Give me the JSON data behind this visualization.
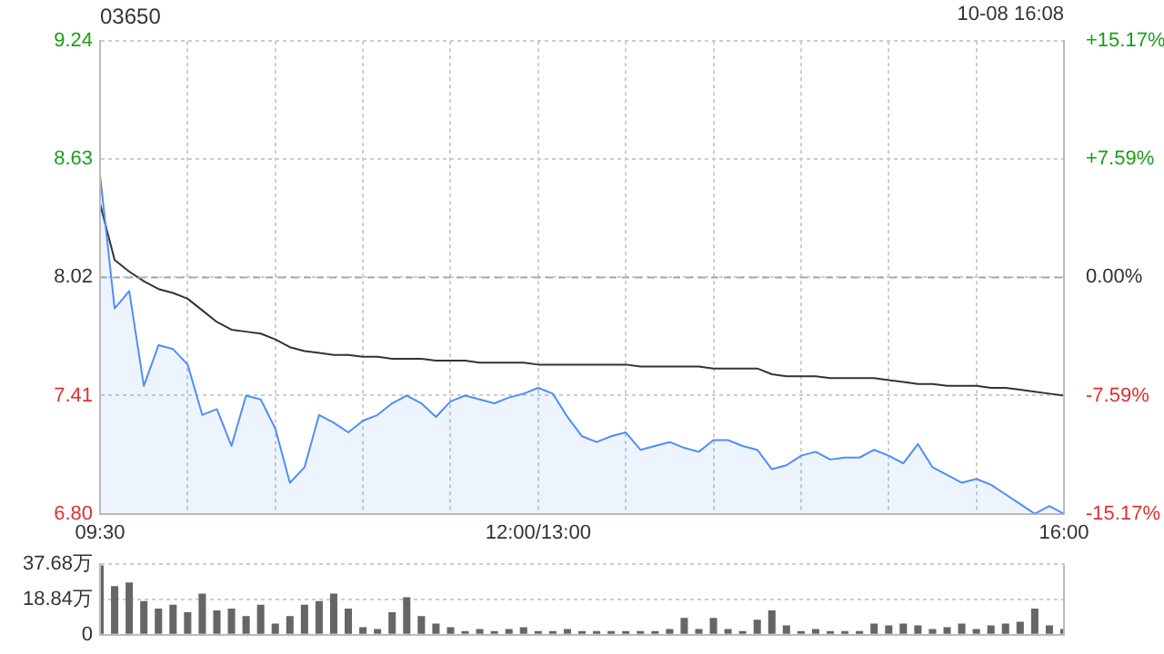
{
  "chart_data": [
    {
      "type": "line",
      "title": "03650",
      "annotations": [
        "10-08 16:08"
      ],
      "categories": [
        "09:30",
        null,
        null,
        null,
        null,
        null,
        null,
        null,
        null,
        null,
        null,
        null,
        null,
        null,
        null,
        null,
        null,
        null,
        null,
        null,
        null,
        null,
        null,
        null,
        null,
        null,
        null,
        null,
        null,
        null,
        "12:00/13:00",
        null,
        null,
        null,
        null,
        null,
        null,
        null,
        null,
        null,
        null,
        null,
        null,
        null,
        null,
        null,
        null,
        null,
        null,
        null,
        null,
        null,
        null,
        null,
        null,
        null,
        null,
        null,
        null,
        null,
        null,
        null,
        null,
        null,
        null,
        null,
        "16:00"
      ],
      "series": [
        {
          "type": "area",
          "color": "#4f8ef7",
          "values": [
            8.55,
            7.86,
            7.95,
            7.46,
            7.67,
            7.65,
            7.57,
            7.31,
            7.34,
            7.15,
            7.41,
            7.39,
            7.24,
            6.96,
            7.04,
            7.31,
            7.27,
            7.22,
            7.28,
            7.31,
            7.37,
            7.41,
            7.37,
            7.3,
            7.38,
            7.41,
            7.39,
            7.37,
            7.4,
            7.42,
            7.45,
            7.42,
            7.3,
            7.2,
            7.17,
            7.2,
            7.22,
            7.13,
            7.15,
            7.17,
            7.14,
            7.12,
            7.18,
            7.18,
            7.15,
            7.13,
            7.03,
            7.05,
            7.1,
            7.12,
            7.08,
            7.09,
            7.09,
            7.13,
            7.1,
            7.06,
            7.16,
            7.04,
            7.0,
            6.96,
            6.98,
            6.95,
            6.9,
            6.85,
            6.8,
            6.84,
            6.8
          ]
        },
        {
          "type": "line",
          "color": "#333333",
          "values": [
            8.4,
            8.11,
            8.05,
            8.0,
            7.96,
            7.94,
            7.91,
            7.85,
            7.79,
            7.75,
            7.74,
            7.73,
            7.7,
            7.66,
            7.64,
            7.63,
            7.62,
            7.62,
            7.61,
            7.61,
            7.6,
            7.6,
            7.6,
            7.59,
            7.59,
            7.59,
            7.58,
            7.58,
            7.58,
            7.58,
            7.57,
            7.57,
            7.57,
            7.57,
            7.57,
            7.57,
            7.57,
            7.56,
            7.56,
            7.56,
            7.56,
            7.56,
            7.55,
            7.55,
            7.55,
            7.55,
            7.52,
            7.51,
            7.51,
            7.51,
            7.5,
            7.5,
            7.5,
            7.5,
            7.49,
            7.48,
            7.47,
            7.47,
            7.46,
            7.46,
            7.46,
            7.45,
            7.45,
            7.44,
            7.43,
            7.42,
            7.41
          ]
        }
      ],
      "ylim": [
        6.8,
        9.24
      ],
      "yticks": [
        {
          "value": 6.8,
          "label": "6.80"
        },
        7.41,
        8.02,
        8.63,
        9.24
      ],
      "y2lim": [
        -15.17,
        15.17
      ],
      "y2ticks": [
        {
          "value": -15.17,
          "label": "-15.17%"
        },
        {
          "value": -7.59,
          "label": "-7.59%"
        },
        {
          "value": 0,
          "label": "0.00%"
        },
        {
          "value": 7.59,
          "label": "+7.59%"
        },
        {
          "value": 15.17,
          "label": "+15.17%"
        }
      ],
      "ref_lines": [
        {
          "axis": "y",
          "value": 8.02,
          "color": "#aaaaaa",
          "line_style": "dashed"
        }
      ],
      "grid": true,
      "legend": false,
      "marker": "none"
    },
    {
      "type": "bar",
      "color": "#666666",
      "categories": [
        null,
        null,
        null,
        null,
        null,
        null,
        null,
        null,
        null,
        null,
        null,
        null,
        null,
        null,
        null,
        null,
        null,
        null,
        null,
        null,
        null,
        null,
        null,
        null,
        null,
        null,
        null,
        null,
        null,
        null,
        null,
        null,
        null,
        null,
        null,
        null,
        null,
        null,
        null,
        null,
        null,
        null,
        null,
        null,
        null,
        null,
        null,
        null,
        null,
        null,
        null,
        null,
        null,
        null,
        null,
        null,
        null,
        null,
        null,
        null,
        null,
        null,
        null,
        null,
        null,
        null,
        null
      ],
      "values": [
        37,
        26,
        28,
        18,
        14,
        16,
        12,
        22,
        13,
        14,
        10,
        16,
        6,
        10,
        16,
        18,
        22,
        14,
        4,
        3,
        12,
        20,
        10,
        6,
        4,
        2,
        3,
        2,
        3,
        4,
        2,
        2,
        3,
        2,
        2,
        2,
        2,
        2,
        2,
        3,
        9,
        3,
        9,
        3,
        2,
        8,
        13,
        5,
        2,
        3,
        2,
        2,
        2,
        6,
        5,
        6,
        5,
        3,
        4,
        6,
        3,
        5,
        6,
        7,
        14,
        5,
        3
      ],
      "ylim": [
        0,
        37.68
      ],
      "yticks": [
        0,
        {
          "value": 18.84,
          "label": "18.84万"
        },
        {
          "value": 37.68,
          "label": "37.68万"
        }
      ],
      "tick_labels": "y",
      "grid": "y",
      "legend": false
    }
  ]
}
